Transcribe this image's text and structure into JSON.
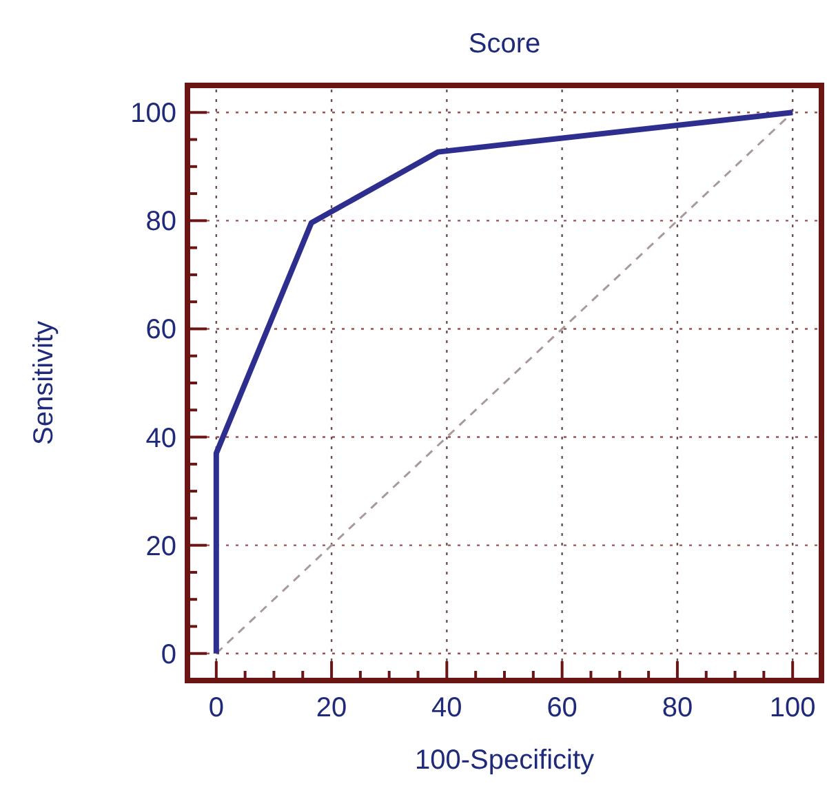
{
  "chart_data": {
    "type": "line",
    "title": "Score",
    "xlabel": "100-Specificity",
    "ylabel": "Sensitivity",
    "xlim": [
      -5,
      105
    ],
    "ylim": [
      -5,
      105
    ],
    "xticks": [
      0,
      {
        "value": 5,
        "label": null
      },
      {
        "value": 10,
        "label": null
      },
      {
        "value": 15,
        "label": null
      },
      20,
      {
        "value": 25,
        "label": null
      },
      {
        "value": 30,
        "label": null
      },
      {
        "value": 35,
        "label": null
      },
      40,
      {
        "value": 45,
        "label": null
      },
      {
        "value": 50,
        "label": null
      },
      {
        "value": 55,
        "label": null
      },
      60,
      {
        "value": 65,
        "label": null
      },
      {
        "value": 70,
        "label": null
      },
      {
        "value": 75,
        "label": null
      },
      80,
      {
        "value": 85,
        "label": null
      },
      {
        "value": 90,
        "label": null
      },
      {
        "value": 95,
        "label": null
      },
      100
    ],
    "yticks": [
      0,
      {
        "value": 5,
        "label": null
      },
      {
        "value": 10,
        "label": null
      },
      {
        "value": 15,
        "label": null
      },
      20,
      {
        "value": 25,
        "label": null
      },
      {
        "value": 30,
        "label": null
      },
      {
        "value": 35,
        "label": null
      },
      40,
      {
        "value": 45,
        "label": null
      },
      {
        "value": 50,
        "label": null
      },
      {
        "value": 55,
        "label": null
      },
      60,
      {
        "value": 65,
        "label": null
      },
      {
        "value": 70,
        "label": null
      },
      {
        "value": 75,
        "label": null
      },
      80,
      {
        "value": 85,
        "label": null
      },
      {
        "value": 90,
        "label": null
      },
      {
        "value": 95,
        "label": null
      },
      100
    ],
    "grid": true,
    "marker": "none",
    "series": [
      {
        "color": "#2e2e8f",
        "x": [
          0,
          0,
          16.5,
          38.5,
          100
        ],
        "values": [
          0,
          37,
          79.6,
          92.7,
          100
        ],
        "line_style": "solid"
      },
      {
        "color": "#a89a9a",
        "x": [
          0,
          100
        ],
        "values": [
          0,
          100
        ],
        "line_style": "dashed"
      }
    ]
  }
}
